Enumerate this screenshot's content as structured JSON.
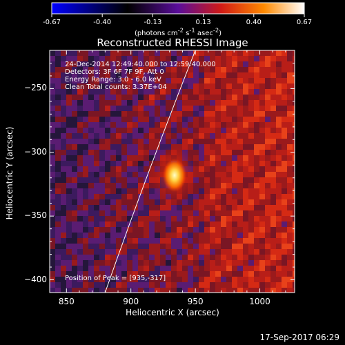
{
  "colorbar": {
    "ticks": [
      "-0.67",
      "-0.40",
      "-0.13",
      "0.13",
      "0.40",
      "0.67"
    ],
    "units_html": "(photons cm<sup>-2</sup> s<sup>-1</sup> asec<sup>-2</sup>)"
  },
  "chart_data": {
    "type": "heatmap",
    "title": "Reconstructed RHESSI Image",
    "xlabel": "Heliocentric X (arcsec)",
    "ylabel": "Heliocentric Y (arcsec)",
    "xlim": [
      837,
      1027
    ],
    "ylim": [
      -410,
      -220
    ],
    "x_ticks": [
      850,
      900,
      950,
      1000
    ],
    "y_ticks": [
      -250,
      -300,
      -350,
      -400
    ],
    "x_tick_labels": [
      "850",
      "900",
      "950",
      "1000"
    ],
    "y_tick_labels": [
      "−250",
      "−300",
      "−350",
      "−400"
    ],
    "value_range": [
      -0.67,
      0.67
    ],
    "colormap": [
      "#0000ff",
      "#000000",
      "#5a0d9a",
      "#d01a16",
      "#ff8a00",
      "#ffffff"
    ],
    "peak": {
      "x": 935,
      "y": -317,
      "label": "Position of Peak = [935,-317]"
    },
    "limb_curve": [
      [
        880,
        -410
      ],
      [
        950,
        -220
      ]
    ],
    "annotations": [
      "24-Dec-2014 12:49:40.000 to 12:59:40.000",
      "Detectors: 3F 6F 7F 9F, Att 0",
      "Energy Range: 3.0 - 6.0 keV",
      "Clean    Total counts: 3.37E+04"
    ]
  },
  "footer": {
    "timestamp": "17-Sep-2017 06:29"
  }
}
